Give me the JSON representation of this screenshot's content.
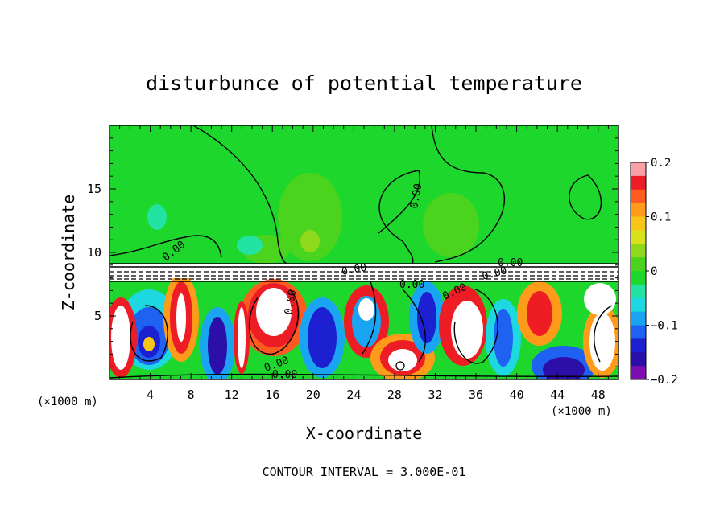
{
  "chart_data": {
    "type": "heatmap",
    "title": "disturbunce of potential temperature",
    "xlabel": "X-coordinate",
    "ylabel": "Z-coordinate",
    "x_unit": "(×1000 m)",
    "z_unit": "(×1000 m)",
    "xlim": [
      0,
      50
    ],
    "ylim": [
      0,
      20
    ],
    "x_ticks": [
      4,
      8,
      12,
      16,
      20,
      24,
      28,
      32,
      36,
      40,
      44,
      48
    ],
    "y_ticks": [
      5,
      10,
      15
    ],
    "colorbar": {
      "min": -0.2,
      "max": 0.2,
      "ticks": [
        "0.2",
        "0.1",
        "0",
        "−0.1",
        "−0.2"
      ],
      "tick_values": [
        0.2,
        0.1,
        0,
        -0.1,
        -0.2
      ],
      "colors": [
        "#f7a1a7",
        "#ee1c25",
        "#ff5a1f",
        "#ff9b1a",
        "#f6c516",
        "#d8e21a",
        "#8fd81c",
        "#4bd41e",
        "#1ed72d",
        "#22e3a1",
        "#1ed8e1",
        "#1aa5f3",
        "#1f62f1",
        "#1c20d0",
        "#2b0fa8",
        "#7d0cb1"
      ]
    },
    "contour_labels": [
      "0.00",
      "0.00",
      "0.00",
      "0.00",
      "0.00",
      "0.00",
      "0.00",
      "0.00",
      "0.00",
      "0.00"
    ],
    "footer": "CONTOUR INTERVAL = 3.000E-01"
  }
}
